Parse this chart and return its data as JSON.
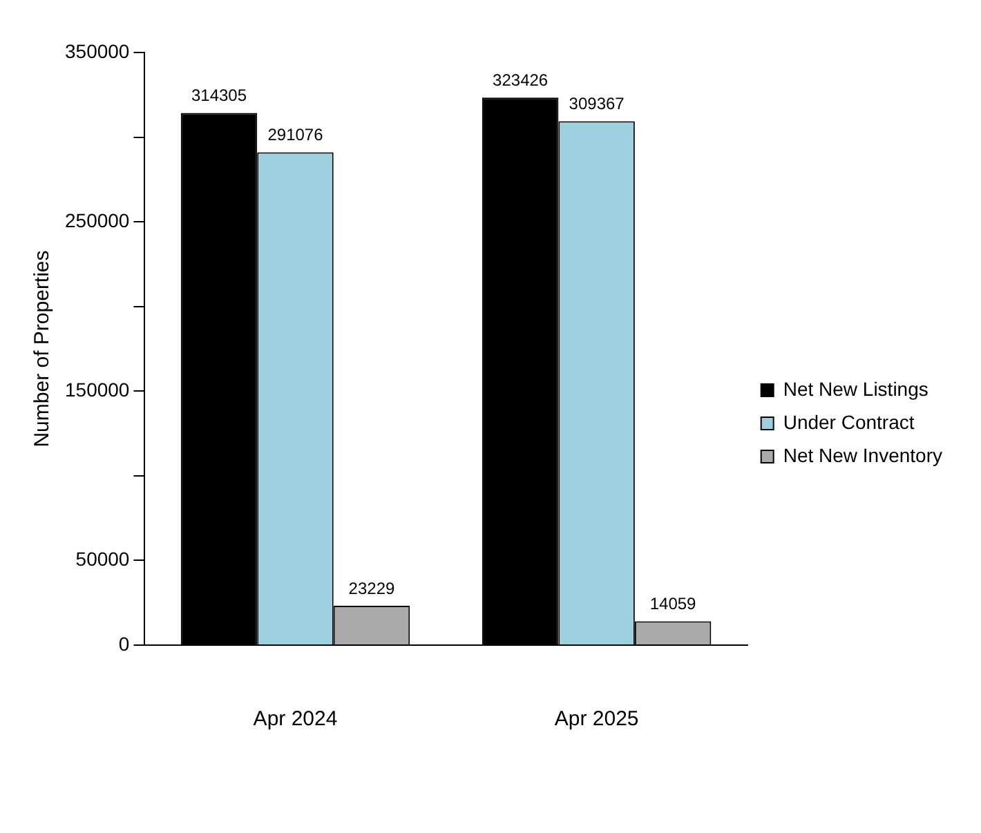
{
  "chart_data": {
    "type": "bar",
    "ylabel": "Number of Properties",
    "categories": [
      "Apr 2024",
      "Apr 2025"
    ],
    "series": [
      {
        "name": "Net New Listings",
        "color": "#000000",
        "values": [
          314305,
          323426
        ]
      },
      {
        "name": "Under Contract",
        "color": "#9ecfdf",
        "values": [
          291076,
          309367
        ]
      },
      {
        "name": "Net New Inventory",
        "color": "#aaaaaa",
        "values": [
          23229,
          14059
        ]
      }
    ],
    "ylim": [
      0,
      350000
    ],
    "yticks": [
      0,
      {
        "value": 50000,
        "label": "50000"
      },
      {
        "value": 100000,
        "label": null
      },
      {
        "value": 150000,
        "label": "150000"
      },
      {
        "value": 200000,
        "label": null
      },
      {
        "value": 250000,
        "label": "250000"
      },
      {
        "value": 300000,
        "label": null
      },
      {
        "value": 350000,
        "label": "350000"
      }
    ],
    "grid": false,
    "legend": "right",
    "data_labels": true
  }
}
